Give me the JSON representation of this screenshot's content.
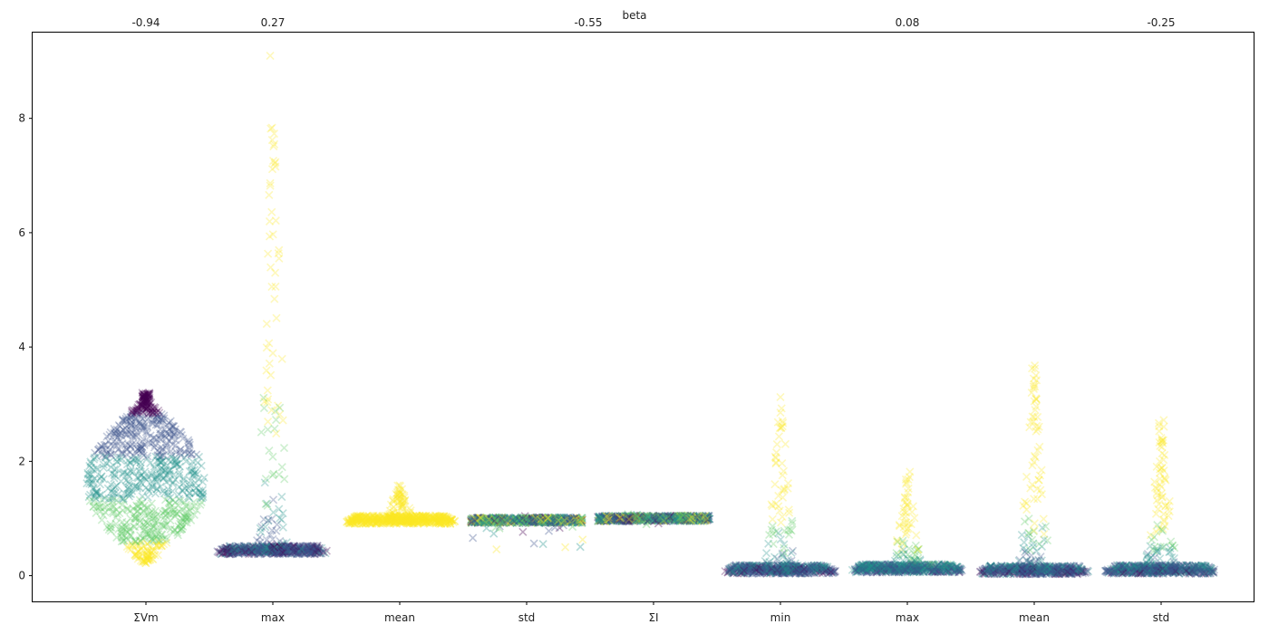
{
  "chart_data": {
    "type": "scatter",
    "style": "beeswarm",
    "marker": "x",
    "colormap": "viridis",
    "top_axis_label": "beta",
    "categories": [
      "ΣVm",
      "max",
      "mean",
      "std",
      "ΣI",
      "min",
      "max",
      "mean",
      "std"
    ],
    "top_values": [
      "-0.94",
      "0.27",
      "",
      "-0.55",
      "",
      "",
      "0.08",
      "",
      "-0.25"
    ],
    "y_ticks": [
      0,
      2,
      4,
      6,
      8
    ],
    "ylim": [
      -0.45,
      9.5
    ],
    "series": [
      {
        "category": "ΣVm",
        "median": 1.6,
        "low": 0.22,
        "high": 3.2
      },
      {
        "category": "max",
        "median": 0.42,
        "low": 0.33,
        "high": 9.1
      },
      {
        "category": "mean",
        "median": 0.95,
        "low": 0.1,
        "high": 1.6
      },
      {
        "category": "std",
        "median": 0.97,
        "low": 0.45,
        "high": 1.05
      },
      {
        "category": "ΣI",
        "median": 1.0,
        "low": 0.9,
        "high": 1.08
      },
      {
        "category": "min",
        "median": 0.08,
        "low": 0.0,
        "high": 3.3
      },
      {
        "category": "max",
        "median": 0.1,
        "low": 0.0,
        "high": 1.9
      },
      {
        "category": "mean",
        "median": 0.07,
        "low": 0.0,
        "high": 3.7
      },
      {
        "category": "std",
        "median": 0.08,
        "low": 0.0,
        "high": 2.75
      }
    ],
    "colors": {
      "viridis_0": "#440154",
      "viridis_1": "#3b528b",
      "viridis_2": "#21918c",
      "viridis_3": "#5ec962",
      "viridis_4": "#fde725",
      "axis": "#000000"
    }
  }
}
